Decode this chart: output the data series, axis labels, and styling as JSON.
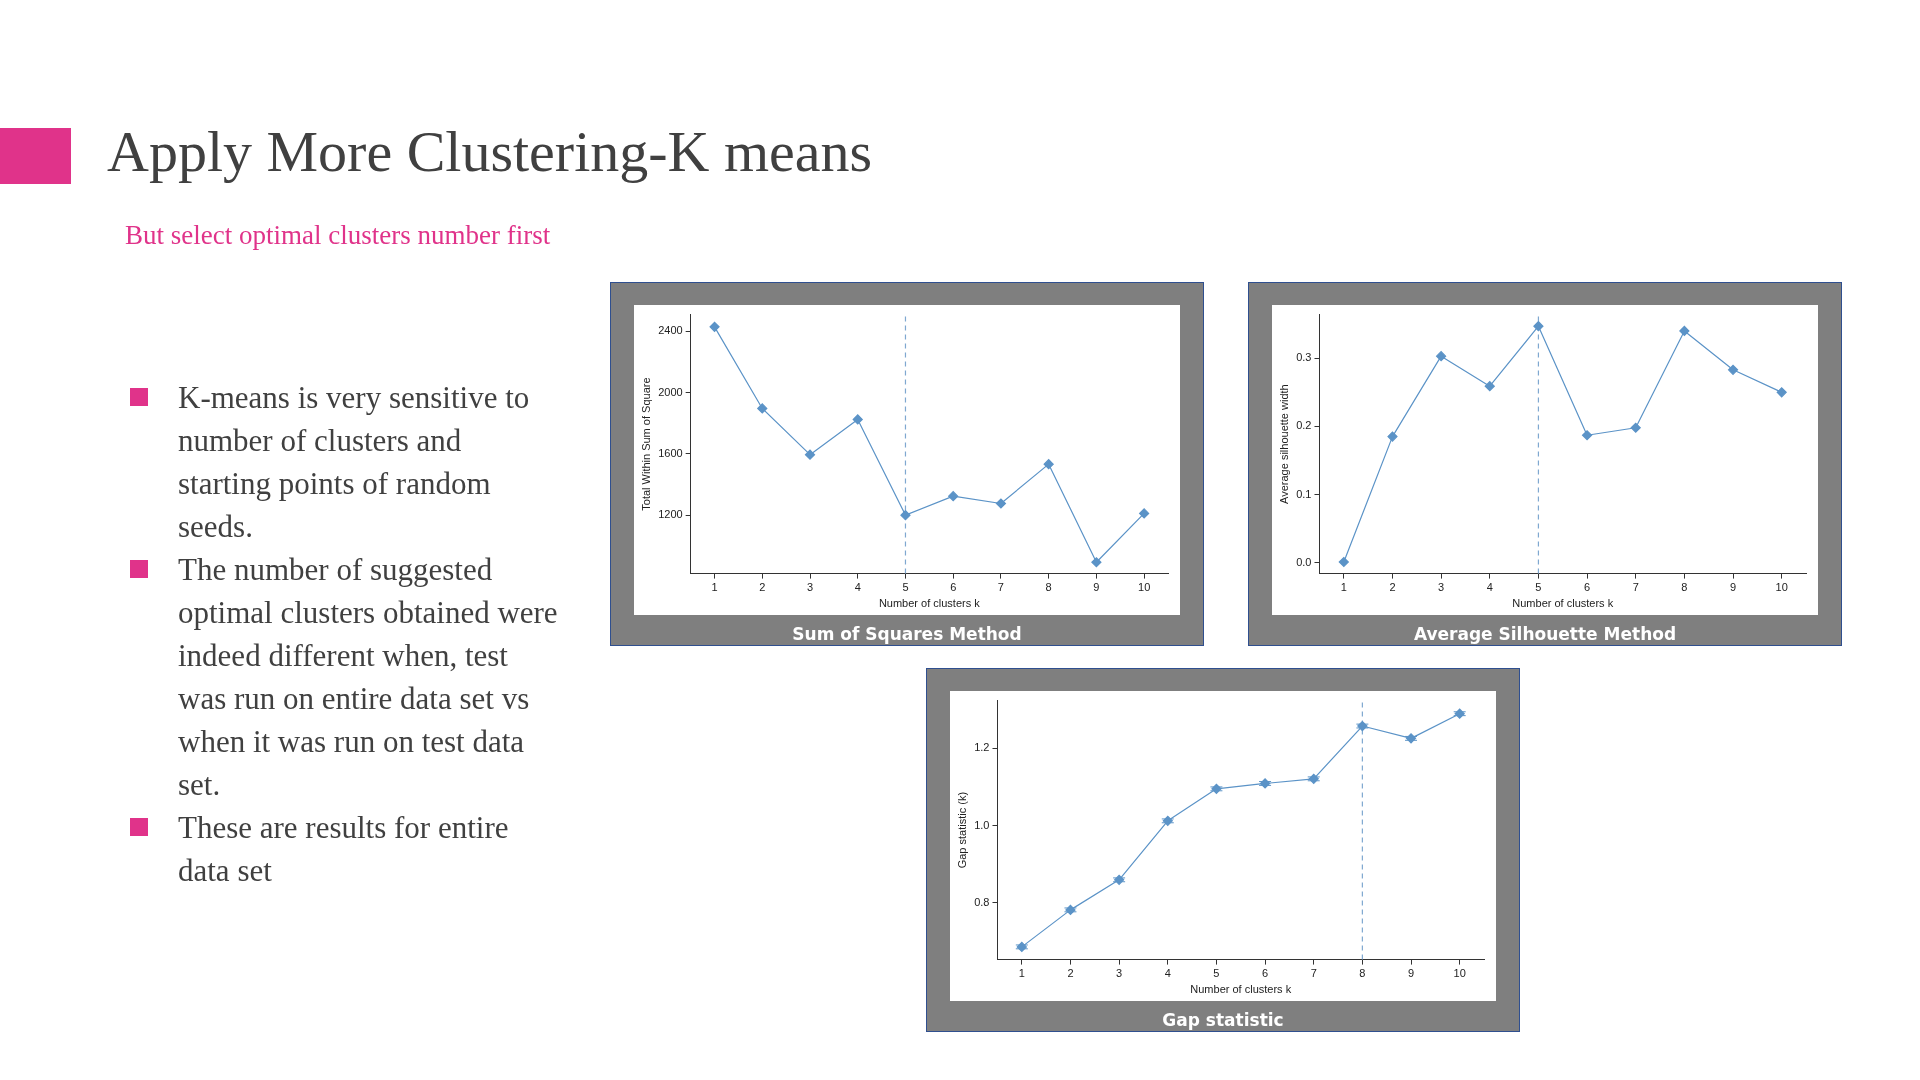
{
  "chart_data": [
    {
      "type": "other",
      "title": "Apply More Clustering-K means",
      "subtitle": "But select optimal clusters number first",
      "annotations": [
        "K-means is very sensitive to number of clusters and starting points of random seeds.",
        "The number of suggested optimal clusters obtained were indeed different when, test was run on entire data set vs  when it was run on test data set.",
        "These are results for entire data set"
      ]
    },
    {
      "type": "line",
      "title": "Sum of Squares Method",
      "xlabel": "Number of clusters k",
      "ylabel": "Total Within Sum of Square",
      "categories": [
        "1",
        "2",
        "3",
        "4",
        "5",
        "6",
        "7",
        "8",
        "9",
        "10"
      ],
      "series": [
        {
          "color": "#5b93c7",
          "values": [
            2430,
            1897,
            1595,
            1825,
            1200,
            1324,
            1276,
            1533,
            892,
            1211
          ]
        }
      ],
      "ylim": [
        818,
        2510
      ],
      "yticks": [
        1200,
        1600,
        2000,
        2400
      ],
      "grid": false,
      "legend": false,
      "marker": "diamond",
      "line_style": "solid",
      "ref_lines": [
        {
          "axis": "x",
          "value": "5",
          "color": "#7fa8d0",
          "line_style": "dashed"
        }
      ]
    },
    {
      "type": "line",
      "title": "Average Silhouette Method",
      "xlabel": "Number of clusters k",
      "ylabel": "Average silhouette width",
      "categories": [
        "1",
        "2",
        "3",
        "4",
        "5",
        "6",
        "7",
        "8",
        "9",
        "10"
      ],
      "series": [
        {
          "color": "#5b93c7",
          "values": [
            0.001,
            0.185,
            0.303,
            0.259,
            0.347,
            0.187,
            0.198,
            0.34,
            0.283,
            0.25
          ]
        }
      ],
      "ylim": [
        -0.016,
        0.364
      ],
      "yticks": [
        {
          "value": 0,
          "label": "0.0"
        },
        0.1,
        0.2,
        0.3
      ],
      "grid": false,
      "legend": false,
      "marker": "diamond",
      "line_style": "solid",
      "ref_lines": [
        {
          "axis": "x",
          "value": "5",
          "color": "#7fa8d0",
          "line_style": "dashed"
        }
      ]
    },
    {
      "type": "line",
      "title": "Gap statistic",
      "xlabel": "Number of clusters k",
      "ylabel": "Gap statistic (k)",
      "categories": [
        "1",
        "2",
        "3",
        "4",
        "5",
        "6",
        "7",
        "8",
        "9",
        "10"
      ],
      "series": [
        {
          "color": "#5b93c7",
          "values": [
            0.685,
            0.781,
            0.859,
            1.012,
            1.095,
            1.109,
            1.121,
            1.258,
            1.226,
            1.29
          ],
          "errors": [
            0.005,
            0.005,
            0.005,
            0.005,
            0.005,
            0.005,
            0.005,
            0.005,
            0.005,
            0.005
          ]
        }
      ],
      "ylim": [
        0.652,
        1.324
      ],
      "yticks": [
        0.8,
        {
          "value": 1,
          "label": "1.0"
        },
        1.2
      ],
      "grid": false,
      "legend": false,
      "marker": "diamond",
      "line_style": "solid",
      "ref_lines": [
        {
          "axis": "x",
          "value": "8",
          "color": "#7fa8d0",
          "line_style": "dashed"
        }
      ]
    }
  ]
}
